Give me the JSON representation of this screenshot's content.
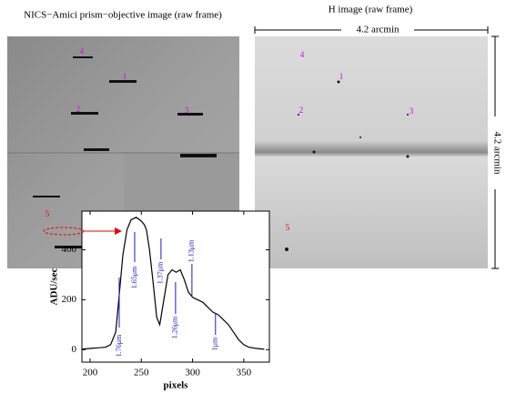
{
  "figure": {
    "left_title": "NICS−Amici prism−objective image (raw frame)",
    "right_title": "H image (raw frame)",
    "scale_top": "4.2 arcmin",
    "scale_side": "4.2 arcmin",
    "left_labels": [
      "4",
      "1",
      "2",
      "3",
      "5"
    ],
    "right_labels": [
      "4",
      "1",
      "2",
      "3",
      "5"
    ]
  },
  "chart_data": {
    "type": "line",
    "xlabel": "pixels",
    "ylabel": "ADU/sec",
    "color": "#000000",
    "x": [
      192,
      200,
      210,
      215,
      220,
      225,
      228,
      232,
      236,
      240,
      245,
      250,
      253,
      255,
      258,
      262,
      265,
      268,
      272,
      276,
      280,
      284,
      288,
      292,
      296,
      300,
      305,
      310,
      315,
      320,
      325,
      330,
      335,
      340,
      345,
      350,
      355,
      362,
      370
    ],
    "values": [
      2,
      5,
      8,
      10,
      20,
      70,
      200,
      380,
      480,
      520,
      530,
      515,
      500,
      480,
      400,
      250,
      130,
      100,
      200,
      300,
      320,
      310,
      320,
      280,
      230,
      210,
      200,
      190,
      170,
      150,
      140,
      120,
      100,
      70,
      40,
      20,
      10,
      5,
      2
    ],
    "xlim": [
      192,
      375
    ],
    "ylim": [
      -50,
      555
    ],
    "xticks": [
      200,
      250,
      300,
      350
    ],
    "yticks": [
      0,
      200,
      400
    ],
    "annotations": [
      {
        "text": "1.76μm",
        "x": 228.4
      },
      {
        "text": "1.65μm",
        "x": 243.5
      },
      {
        "text": "1.37μm",
        "x": 269.2
      },
      {
        "text": "1.13μm",
        "x": 299.4
      },
      {
        "text": "1.26μm",
        "x": 283.4
      },
      {
        "text": "1μm",
        "x": 322.4
      }
    ]
  }
}
